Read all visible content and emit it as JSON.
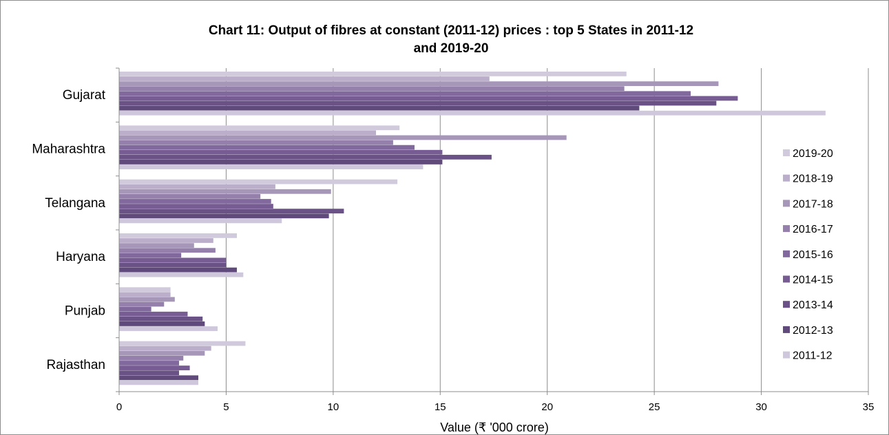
{
  "chart_data": {
    "type": "bar",
    "orientation": "horizontal",
    "title_line1": "Chart 11: Output of fibres at constant (2011-12) prices : top 5 States in 2011-12",
    "title_line2": "and 2019-20",
    "xlabel": "Value (₹ '000 crore)",
    "ylabel": "",
    "xlim": [
      0,
      35
    ],
    "x_ticks": [
      "0",
      "5",
      "10",
      "15",
      "20",
      "25",
      "30",
      "35"
    ],
    "grid": "vertical",
    "legend_position": "right",
    "categories": [
      "Gujarat",
      "Maharashtra",
      "Telangana",
      "Haryana",
      "Punjab",
      "Rajasthan"
    ],
    "series": [
      {
        "name": "2011-12",
        "color": "#cfc7dc",
        "values": [
          33.0,
          14.2,
          7.6,
          5.8,
          4.6,
          3.7
        ]
      },
      {
        "name": "2012-13",
        "color": "#604a7b",
        "values": [
          24.3,
          15.1,
          9.8,
          5.5,
          4.0,
          3.7
        ]
      },
      {
        "name": "2013-14",
        "color": "#6b5286",
        "values": [
          27.9,
          17.4,
          10.5,
          5.0,
          3.9,
          2.8
        ]
      },
      {
        "name": "2014-15",
        "color": "#765c93",
        "values": [
          28.9,
          15.1,
          7.2,
          5.0,
          3.2,
          3.3
        ]
      },
      {
        "name": "2015-16",
        "color": "#82699d",
        "values": [
          26.7,
          13.8,
          7.1,
          2.9,
          1.5,
          2.8
        ]
      },
      {
        "name": "2016-17",
        "color": "#9480ab",
        "values": [
          23.6,
          12.8,
          6.6,
          4.5,
          2.1,
          3.0
        ]
      },
      {
        "name": "2017-18",
        "color": "#a697b9",
        "values": [
          28.0,
          20.9,
          9.9,
          3.5,
          2.6,
          4.0
        ]
      },
      {
        "name": "2018-19",
        "color": "#bbaecb",
        "values": [
          17.3,
          12.0,
          7.3,
          4.4,
          2.4,
          4.3
        ]
      },
      {
        "name": "2019-20",
        "color": "#d1c9dc",
        "values": [
          23.7,
          13.1,
          13.0,
          5.5,
          2.4,
          5.9
        ]
      }
    ],
    "legend_order": [
      "2019-20",
      "2018-19",
      "2017-18",
      "2016-17",
      "2015-16",
      "2014-15",
      "2013-14",
      "2012-13",
      "2011-12"
    ]
  }
}
